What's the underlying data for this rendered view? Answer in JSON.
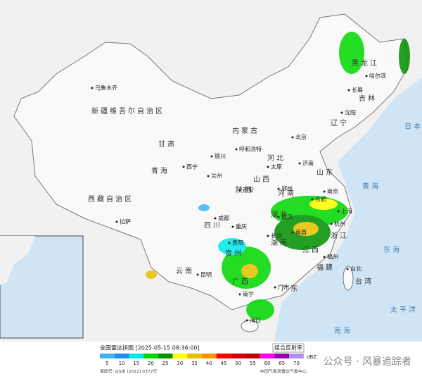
{
  "title": "全国雷达拼图 [2025-05-15 08:36:00]",
  "legend": {
    "title": "组合反射率",
    "unit": "dBZ",
    "levels": [
      {
        "value": 5,
        "color": "#42b4f5"
      },
      {
        "value": 10,
        "color": "#1e8ef0"
      },
      {
        "value": 15,
        "color": "#00e8e8"
      },
      {
        "value": 20,
        "color": "#00d800"
      },
      {
        "value": 25,
        "color": "#009000"
      },
      {
        "value": 30,
        "color": "#ffff00"
      },
      {
        "value": 35,
        "color": "#e7c000"
      },
      {
        "value": 40,
        "color": "#ff9000"
      },
      {
        "value": 45,
        "color": "#ff0000"
      },
      {
        "value": 50,
        "color": "#d60000"
      },
      {
        "value": 55,
        "color": "#c00000"
      },
      {
        "value": 60,
        "color": "#ff00f0"
      },
      {
        "value": 65,
        "color": "#9600b4"
      },
      {
        "value": 70,
        "color": "#ad90f0"
      }
    ]
  },
  "footer": {
    "map_number": "审图号: GS京 (2022) 0372号",
    "source": "中国气象局雷达气象中心"
  },
  "watermark": "公众号 · 风暴追踪者",
  "regions": [
    "新疆维吾尔自治区",
    "西藏自治区",
    "青海",
    "甘肃",
    "内蒙古",
    "黑龙江",
    "吉林",
    "辽宁",
    "河北",
    "山西",
    "陕西",
    "河南",
    "山东",
    "四川",
    "湖北",
    "湖南",
    "江西",
    "浙江",
    "福建",
    "广东",
    "广西",
    "云南",
    "贵州",
    "台湾"
  ],
  "cities": [
    "乌鲁木齐",
    "哈尔滨",
    "长春",
    "沈阳",
    "北京",
    "呼和浩特",
    "银川",
    "兰州",
    "西宁",
    "太原",
    "济南",
    "郑州",
    "西安",
    "合肥",
    "南京",
    "上海",
    "杭州",
    "武汉",
    "长沙",
    "南昌",
    "福州",
    "成都",
    "重庆",
    "贵阳",
    "昆明",
    "南宁",
    "广州",
    "海口",
    "拉萨",
    "台北"
  ],
  "seas": [
    "日本海",
    "黄海",
    "东海",
    "太平洋",
    "南海"
  ]
}
